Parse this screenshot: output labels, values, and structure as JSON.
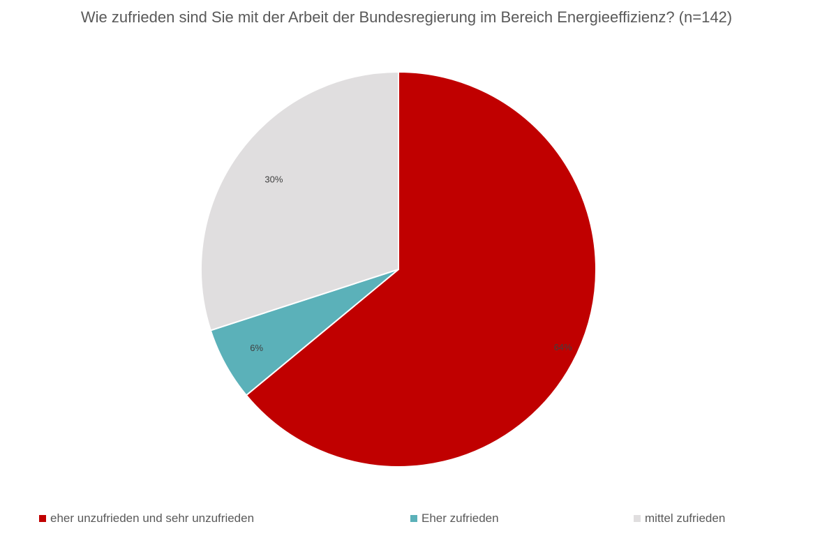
{
  "chart_data": {
    "type": "pie",
    "title": "Wie zufrieden sind Sie mit der Arbeit der Bundesregierung im Bereich Energieeffizienz? (n=142)",
    "categories": [
      "eher unzufrieden und sehr unzufrieden",
      "Eher zufrieden",
      "mittel zufrieden"
    ],
    "values": [
      64,
      6,
      30
    ],
    "labels": [
      "64%",
      "6%",
      "30%"
    ],
    "colors": [
      "#C00000",
      "#5BB1B9",
      "#E0DEDF"
    ],
    "legend_position": "bottom"
  }
}
